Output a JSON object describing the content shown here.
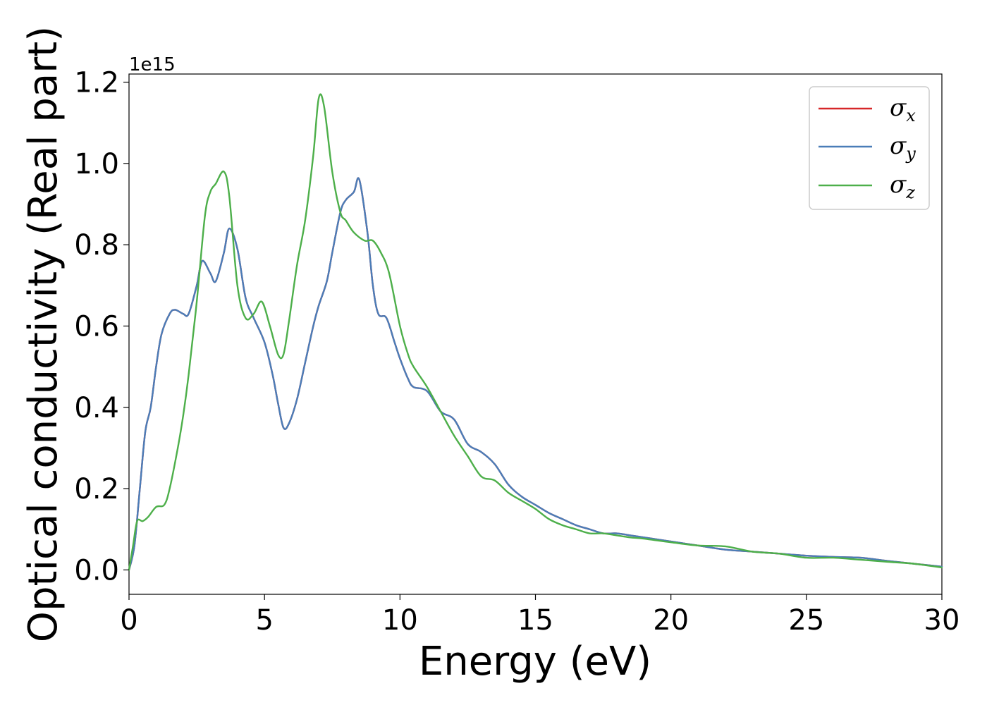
{
  "chart_data": {
    "type": "line",
    "xlabel": "Energy (eV)",
    "ylabel": "Optical conductivity (Real part)",
    "y_offset_text": "1e15",
    "y_scale": 1000000000000000.0,
    "xlim": [
      0,
      30
    ],
    "ylim": [
      -0.06,
      1.22
    ],
    "xticks": [
      0,
      5,
      10,
      15,
      20,
      25,
      30
    ],
    "xtick_labels": [
      "0",
      "5",
      "10",
      "15",
      "20",
      "25",
      "30"
    ],
    "yticks": [
      0.0,
      0.2,
      0.4,
      0.6,
      0.8,
      1.0,
      1.2
    ],
    "ytick_labels": [
      "0.0",
      "0.2",
      "0.4",
      "0.6",
      "0.8",
      "1.0",
      "1.2"
    ],
    "grid": false,
    "legend_position": "top-right",
    "series": [
      {
        "name": "σx",
        "symbol": "σ",
        "subscript": "x",
        "color": "#d62728",
        "x": [
          0,
          0.2,
          0.4,
          0.6,
          0.8,
          1.0,
          1.2,
          1.5,
          1.7,
          2.0,
          2.2,
          2.5,
          2.7,
          3.0,
          3.2,
          3.5,
          3.7,
          4.0,
          4.3,
          4.6,
          5.0,
          5.3,
          5.5,
          5.7,
          5.9,
          6.2,
          6.5,
          6.8,
          7.0,
          7.3,
          7.5,
          7.8,
          8.0,
          8.3,
          8.5,
          8.8,
          9.0,
          9.2,
          9.5,
          9.8,
          10.0,
          10.3,
          10.5,
          11.0,
          11.5,
          12.0,
          12.5,
          13.0,
          13.5,
          14.0,
          14.5,
          15.0,
          15.5,
          16.0,
          16.5,
          17.0,
          17.5,
          18.0,
          18.5,
          19.0,
          19.5,
          20.0,
          21.0,
          22.0,
          23.0,
          24.0,
          25.0,
          26.0,
          27.0,
          28.0,
          29.0,
          30.0
        ],
        "y": [
          0.0,
          0.06,
          0.2,
          0.34,
          0.4,
          0.5,
          0.58,
          0.63,
          0.64,
          0.63,
          0.63,
          0.7,
          0.76,
          0.73,
          0.71,
          0.78,
          0.84,
          0.79,
          0.67,
          0.62,
          0.56,
          0.48,
          0.41,
          0.35,
          0.36,
          0.42,
          0.51,
          0.6,
          0.65,
          0.71,
          0.78,
          0.88,
          0.91,
          0.93,
          0.96,
          0.83,
          0.7,
          0.63,
          0.62,
          0.56,
          0.52,
          0.47,
          0.45,
          0.44,
          0.39,
          0.37,
          0.31,
          0.29,
          0.26,
          0.21,
          0.18,
          0.16,
          0.14,
          0.125,
          0.11,
          0.1,
          0.09,
          0.09,
          0.085,
          0.08,
          0.075,
          0.07,
          0.06,
          0.05,
          0.045,
          0.04,
          0.035,
          0.032,
          0.03,
          0.022,
          0.015,
          0.008
        ]
      },
      {
        "name": "σy",
        "symbol": "σ",
        "subscript": "y",
        "color": "#4a7db8",
        "x": [
          0,
          0.2,
          0.4,
          0.6,
          0.8,
          1.0,
          1.2,
          1.5,
          1.7,
          2.0,
          2.2,
          2.5,
          2.7,
          3.0,
          3.2,
          3.5,
          3.7,
          4.0,
          4.3,
          4.6,
          5.0,
          5.3,
          5.5,
          5.7,
          5.9,
          6.2,
          6.5,
          6.8,
          7.0,
          7.3,
          7.5,
          7.8,
          8.0,
          8.3,
          8.5,
          8.8,
          9.0,
          9.2,
          9.5,
          9.8,
          10.0,
          10.3,
          10.5,
          11.0,
          11.5,
          12.0,
          12.5,
          13.0,
          13.5,
          14.0,
          14.5,
          15.0,
          15.5,
          16.0,
          16.5,
          17.0,
          17.5,
          18.0,
          18.5,
          19.0,
          19.5,
          20.0,
          21.0,
          22.0,
          23.0,
          24.0,
          25.0,
          26.0,
          27.0,
          28.0,
          29.0,
          30.0
        ],
        "y": [
          0.0,
          0.06,
          0.2,
          0.34,
          0.4,
          0.5,
          0.58,
          0.63,
          0.64,
          0.63,
          0.63,
          0.7,
          0.76,
          0.73,
          0.71,
          0.78,
          0.84,
          0.79,
          0.67,
          0.62,
          0.56,
          0.48,
          0.41,
          0.35,
          0.36,
          0.42,
          0.51,
          0.6,
          0.65,
          0.71,
          0.78,
          0.88,
          0.91,
          0.93,
          0.96,
          0.83,
          0.7,
          0.63,
          0.62,
          0.56,
          0.52,
          0.47,
          0.45,
          0.44,
          0.39,
          0.37,
          0.31,
          0.29,
          0.26,
          0.21,
          0.18,
          0.16,
          0.14,
          0.125,
          0.11,
          0.1,
          0.09,
          0.09,
          0.085,
          0.08,
          0.075,
          0.07,
          0.06,
          0.05,
          0.045,
          0.04,
          0.035,
          0.032,
          0.03,
          0.022,
          0.015,
          0.008
        ]
      },
      {
        "name": "σz",
        "symbol": "σ",
        "subscript": "z",
        "color": "#4daf4a",
        "x": [
          0,
          0.15,
          0.3,
          0.5,
          0.7,
          1.0,
          1.3,
          1.5,
          1.8,
          2.0,
          2.2,
          2.5,
          2.8,
          3.0,
          3.2,
          3.5,
          3.7,
          4.0,
          4.3,
          4.6,
          4.9,
          5.2,
          5.5,
          5.7,
          5.9,
          6.2,
          6.5,
          6.8,
          7.0,
          7.2,
          7.5,
          7.8,
          8.0,
          8.3,
          8.7,
          9.0,
          9.3,
          9.6,
          10.0,
          10.3,
          10.5,
          11.0,
          11.5,
          12.0,
          12.5,
          13.0,
          13.5,
          14.0,
          14.5,
          15.0,
          15.5,
          16.0,
          16.5,
          17.0,
          17.5,
          18.0,
          18.5,
          19.0,
          20.0,
          21.0,
          22.0,
          23.0,
          24.0,
          25.0,
          26.0,
          27.0,
          28.0,
          29.0,
          30.0
        ],
        "y": [
          0.0,
          0.06,
          0.12,
          0.12,
          0.13,
          0.155,
          0.16,
          0.2,
          0.3,
          0.38,
          0.48,
          0.66,
          0.87,
          0.93,
          0.95,
          0.98,
          0.92,
          0.7,
          0.62,
          0.63,
          0.66,
          0.6,
          0.53,
          0.53,
          0.61,
          0.75,
          0.86,
          1.02,
          1.16,
          1.14,
          0.98,
          0.88,
          0.86,
          0.83,
          0.81,
          0.81,
          0.78,
          0.73,
          0.6,
          0.53,
          0.5,
          0.45,
          0.39,
          0.33,
          0.28,
          0.23,
          0.22,
          0.19,
          0.17,
          0.15,
          0.125,
          0.11,
          0.1,
          0.09,
          0.09,
          0.085,
          0.08,
          0.077,
          0.068,
          0.06,
          0.058,
          0.045,
          0.04,
          0.03,
          0.03,
          0.025,
          0.02,
          0.015,
          0.006
        ]
      }
    ]
  }
}
